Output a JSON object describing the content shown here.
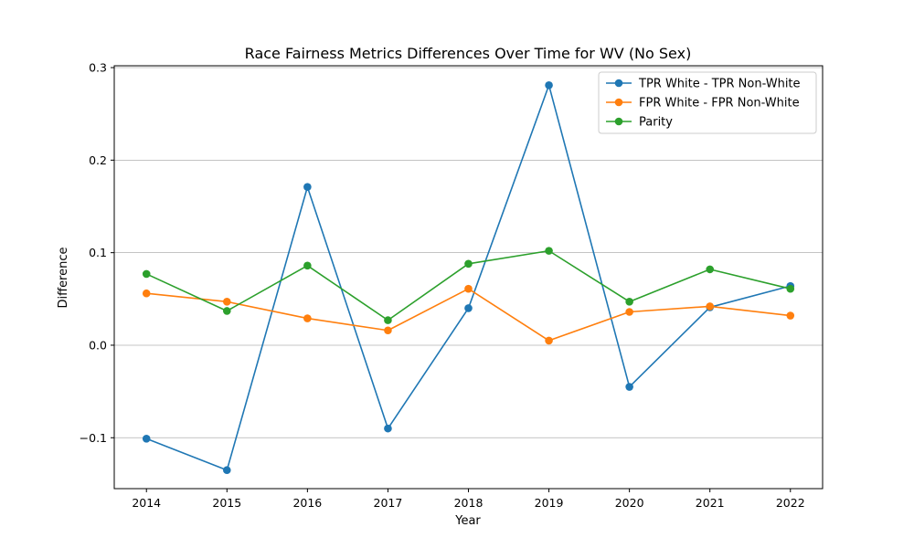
{
  "chart_data": {
    "type": "line",
    "title": "Race Fairness Metrics Differences Over Time for WV (No Sex)",
    "xlabel": "Year",
    "ylabel": "Difference",
    "x": [
      "2014",
      "2015",
      "2016",
      "2017",
      "2018",
      "2019",
      "2020",
      "2021",
      "2022"
    ],
    "xlim": [
      2013.6,
      2022.4
    ],
    "ylim": [
      -0.155,
      0.302
    ],
    "yticks": [
      -0.1,
      0.0,
      0.1,
      0.2,
      0.3
    ],
    "ytick_labels": [
      "−0.1",
      "0.0",
      "0.1",
      "0.2",
      "0.3"
    ],
    "grid": "y",
    "legend_position": "top-right",
    "series": [
      {
        "name": "TPR White - TPR Non-White",
        "color": "#1f77b4",
        "values": [
          -0.101,
          -0.135,
          0.171,
          -0.09,
          0.04,
          0.281,
          -0.045,
          0.041,
          0.064
        ]
      },
      {
        "name": "FPR White - FPR Non-White",
        "color": "#ff7f0e",
        "values": [
          0.056,
          0.047,
          0.029,
          0.016,
          0.061,
          0.005,
          0.036,
          0.042,
          0.032
        ]
      },
      {
        "name": "Parity",
        "color": "#2ca02c",
        "values": [
          0.077,
          0.037,
          0.086,
          0.027,
          0.088,
          0.102,
          0.047,
          0.082,
          0.061
        ]
      }
    ]
  }
}
